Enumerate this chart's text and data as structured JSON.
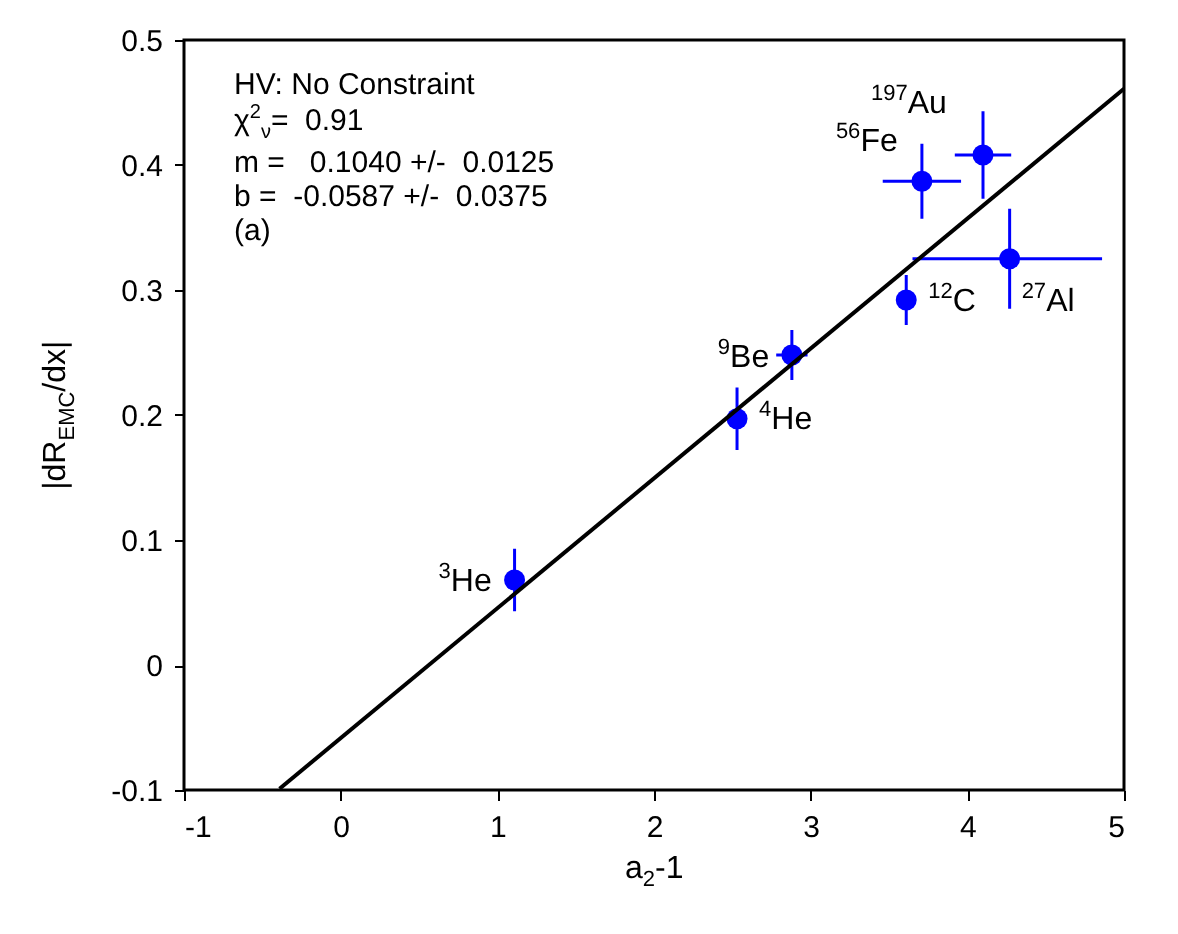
{
  "chart_data": {
    "type": "scatter",
    "xlabel": "a$_{2}$-1",
    "ylabel": "|dR$_{EMC}$/dx|",
    "xlim": [
      -1,
      5
    ],
    "ylim": [
      -0.1,
      0.5
    ],
    "xticks": [
      -1,
      0,
      1,
      2,
      3,
      4,
      5
    ],
    "yticks": [
      -0.1,
      0,
      0.1,
      0.2,
      0.3,
      0.4,
      0.5
    ],
    "grid": false,
    "series": [
      {
        "color": "#0000ff",
        "marker": "circle",
        "x": [
          1.11,
          2.53,
          2.88,
          3.61,
          3.71,
          4.1,
          4.27
        ],
        "values": [
          0.068,
          0.197,
          0.248,
          0.292,
          0.387,
          0.408,
          0.325
        ],
        "errors": [
          0.025,
          0.025,
          0.02,
          0.02,
          0.03,
          0.035,
          0.04
        ],
        "xerrors": [
          null,
          null,
          0.1,
          0.05,
          0.25,
          0.18,
          [
            3.65,
            4.86
          ]
        ]
      },
      {
        "type": "line",
        "color": "#000000",
        "line_style": "solid",
        "x": [
          -0.39,
          5
        ],
        "values": [
          -0.099,
          0.461
        ]
      }
    ],
    "annotations": [
      "HV: No Constraint",
      "χ$^{2}$$_{ν}$=  0.91",
      "m =   0.1040 +/-  0.0125",
      "b =  -0.0587 +/-  0.0375",
      "(a)",
      {
        "text": "$^{3}$He",
        "x": 1.11,
        "y": 0.068
      },
      {
        "text": "$^{4}$He",
        "x": 2.53,
        "y": 0.197
      },
      {
        "text": "$^{9}$Be",
        "x": 2.88,
        "y": 0.248
      },
      {
        "text": "$^{12}$C",
        "x": 3.61,
        "y": 0.292
      },
      {
        "text": "$^{56}$Fe",
        "x": 3.71,
        "y": 0.387
      },
      {
        "text": "$^{197}$Au",
        "x": 4.1,
        "y": 0.408
      },
      {
        "text": "$^{27}$Al",
        "x": 4.27,
        "y": 0.325
      }
    ]
  }
}
